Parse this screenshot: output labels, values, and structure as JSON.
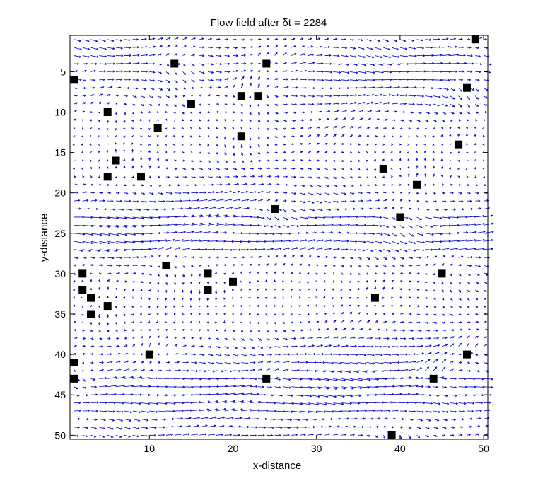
{
  "chart_data": {
    "type": "quiver",
    "title": "Flow field after  δt = 2284",
    "xlabel": "x-distance",
    "ylabel": "y-distance",
    "xlim": [
      0.5,
      50.5
    ],
    "ylim": [
      0.5,
      50.5
    ],
    "y_reversed": true,
    "grid": false,
    "xticks": [
      10,
      20,
      30,
      40,
      50
    ],
    "yticks": [
      5,
      10,
      15,
      20,
      25,
      30,
      35,
      40,
      45,
      50
    ],
    "arrow_color": "#0000cc",
    "obstacle_color": "#000000",
    "obstacles": [
      [
        49,
        1
      ],
      [
        13,
        4
      ],
      [
        24,
        4
      ],
      [
        1,
        6
      ],
      [
        48,
        7
      ],
      [
        21,
        8
      ],
      [
        23,
        8
      ],
      [
        15,
        9
      ],
      [
        5,
        10
      ],
      [
        11,
        12
      ],
      [
        21,
        13
      ],
      [
        47,
        14
      ],
      [
        6,
        16
      ],
      [
        38,
        17
      ],
      [
        5,
        18
      ],
      [
        9,
        18
      ],
      [
        42,
        19
      ],
      [
        25,
        22
      ],
      [
        40,
        23
      ],
      [
        12,
        29
      ],
      [
        2,
        30
      ],
      [
        17,
        30
      ],
      [
        45,
        30
      ],
      [
        20,
        31
      ],
      [
        2,
        32
      ],
      [
        17,
        32
      ],
      [
        3,
        33
      ],
      [
        37,
        33
      ],
      [
        5,
        34
      ],
      [
        3,
        35
      ],
      [
        10,
        40
      ],
      [
        48,
        40
      ],
      [
        1,
        41
      ],
      [
        1,
        43
      ],
      [
        24,
        43
      ],
      [
        44,
        43
      ],
      [
        39,
        50
      ]
    ]
  }
}
